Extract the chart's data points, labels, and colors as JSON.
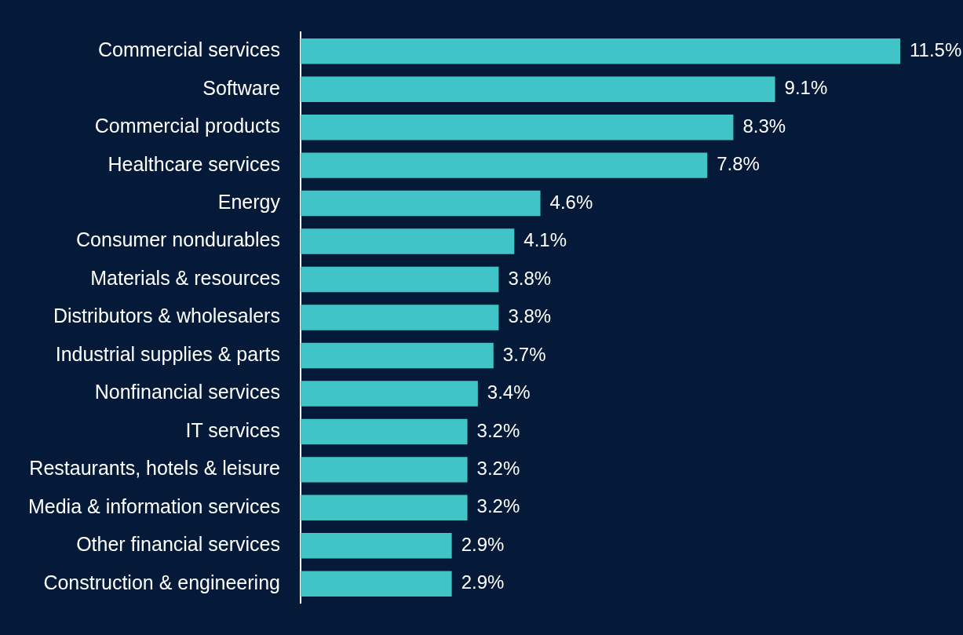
{
  "chart_data": {
    "type": "bar",
    "orientation": "horizontal",
    "categories": [
      "Commercial services",
      "Software",
      "Commercial products",
      "Healthcare services",
      "Energy",
      "Consumer nondurables",
      "Materials & resources",
      "Distributors & wholesalers",
      "Industrial supplies & parts",
      "Nonfinancial services",
      "IT services",
      "Restaurants, hotels & leisure",
      "Media & information services",
      "Other financial services",
      "Construction & engineering"
    ],
    "values": [
      11.5,
      9.1,
      8.3,
      7.8,
      4.6,
      4.1,
      3.8,
      3.8,
      3.7,
      3.4,
      3.2,
      3.2,
      3.2,
      2.9,
      2.9
    ],
    "value_labels": [
      "11.5%",
      "9.1%",
      "8.3%",
      "7.8%",
      "4.6%",
      "4.1%",
      "3.8%",
      "3.8%",
      "3.7%",
      "3.4%",
      "3.2%",
      "3.2%",
      "3.2%",
      "2.9%",
      "2.9%"
    ],
    "color": "#40c4c8",
    "legend": false
  }
}
